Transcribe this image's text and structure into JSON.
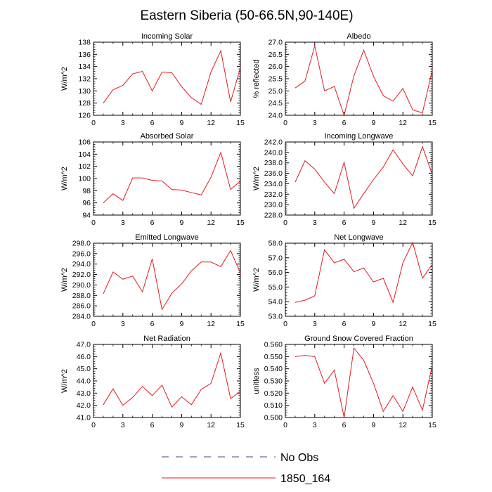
{
  "title": "Eastern Siberia (50-66.5N,90-140E)",
  "colors": {
    "series_line": "#e41a1c",
    "obs_line": "#444488",
    "axis": "#000000"
  },
  "legend": {
    "items": [
      {
        "label": "No Obs",
        "style": "dashed",
        "color": "#444488"
      },
      {
        "label": "1850_164",
        "style": "solid",
        "color": "#e41a1c"
      }
    ]
  },
  "chart_data": [
    {
      "type": "line",
      "title": "Incoming Solar",
      "ylabel": "W/m^2",
      "xlim": [
        0,
        15
      ],
      "ylim": [
        126,
        138
      ],
      "xticks": [
        0,
        3,
        6,
        9,
        12,
        15
      ],
      "yticks": [
        126,
        128,
        130,
        132,
        134,
        136,
        138
      ],
      "ytick_labels": [
        "126",
        "128",
        "130",
        "132",
        "134",
        "136",
        "138"
      ],
      "x": [
        1,
        2,
        3,
        4,
        5,
        6,
        7,
        8,
        9,
        10,
        11,
        12,
        13,
        14,
        15
      ],
      "series": [
        {
          "name": "1850_164",
          "values": [
            128.0,
            130.2,
            130.9,
            132.8,
            133.2,
            130.0,
            133.1,
            133.0,
            130.7,
            128.9,
            127.8,
            133.1,
            136.6,
            128.2,
            133.8
          ]
        }
      ]
    },
    {
      "type": "line",
      "title": "Albedo",
      "ylabel": "% reflected",
      "xlim": [
        0,
        15
      ],
      "ylim": [
        24.0,
        27.0
      ],
      "xticks": [
        0,
        3,
        6,
        9,
        12,
        15
      ],
      "yticks": [
        24.0,
        24.5,
        25.0,
        25.5,
        26.0,
        26.5,
        27.0
      ],
      "ytick_labels": [
        "24.0",
        "24.5",
        "25.0",
        "25.5",
        "26.0",
        "26.5",
        "27.0"
      ],
      "x": [
        1,
        2,
        3,
        4,
        5,
        6,
        7,
        8,
        9,
        10,
        11,
        12,
        13,
        14,
        15
      ],
      "series": [
        {
          "name": "1850_164",
          "values": [
            25.12,
            25.4,
            26.85,
            25.0,
            25.18,
            24.0,
            25.62,
            26.67,
            25.6,
            24.8,
            24.58,
            25.1,
            24.22,
            24.1,
            25.85
          ]
        }
      ]
    },
    {
      "type": "line",
      "title": "Absorbed Solar",
      "ylabel": "W/m^2",
      "xlim": [
        0,
        15
      ],
      "ylim": [
        94,
        106
      ],
      "xticks": [
        0,
        3,
        6,
        9,
        12,
        15
      ],
      "yticks": [
        94,
        96,
        98,
        100,
        102,
        104,
        106
      ],
      "ytick_labels": [
        "94",
        "96",
        "98",
        "100",
        "102",
        "104",
        "106"
      ],
      "x": [
        1,
        2,
        3,
        4,
        5,
        6,
        7,
        8,
        9,
        10,
        11,
        12,
        13,
        14,
        15
      ],
      "series": [
        {
          "name": "1850_164",
          "values": [
            96.0,
            97.5,
            96.4,
            100.1,
            100.1,
            99.7,
            99.6,
            98.2,
            98.1,
            97.7,
            97.3,
            100.2,
            104.3,
            98.2,
            99.6
          ]
        }
      ]
    },
    {
      "type": "line",
      "title": "Incoming Longwave",
      "ylabel": "W/m^2",
      "xlim": [
        0,
        15
      ],
      "ylim": [
        228.0,
        242.0
      ],
      "xticks": [
        0,
        3,
        6,
        9,
        12,
        15
      ],
      "yticks": [
        228.0,
        230.0,
        232.0,
        234.0,
        236.0,
        238.0,
        240.0,
        242.0
      ],
      "ytick_labels": [
        "228.0",
        "230.0",
        "232.0",
        "234.0",
        "236.0",
        "238.0",
        "240.0",
        "242.0"
      ],
      "x": [
        1,
        2,
        3,
        4,
        5,
        6,
        7,
        8,
        9,
        10,
        11,
        12,
        13,
        14,
        15
      ],
      "series": [
        {
          "name": "1850_164",
          "values": [
            234.3,
            238.4,
            236.8,
            234.3,
            232.1,
            238.1,
            229.3,
            232.1,
            234.8,
            237.2,
            240.5,
            237.8,
            235.5,
            241.1,
            235.8
          ]
        }
      ]
    },
    {
      "type": "line",
      "title": "Emitted Longwave",
      "ylabel": "W/m^2",
      "xlim": [
        0,
        15
      ],
      "ylim": [
        284.0,
        298.0
      ],
      "xticks": [
        0,
        3,
        6,
        9,
        12,
        15
      ],
      "yticks": [
        284.0,
        286.0,
        288.0,
        290.0,
        292.0,
        294.0,
        296.0,
        298.0
      ],
      "ytick_labels": [
        "284.0",
        "286.0",
        "288.0",
        "290.0",
        "292.0",
        "294.0",
        "296.0",
        "298.0"
      ],
      "x": [
        1,
        2,
        3,
        4,
        5,
        6,
        7,
        8,
        9,
        10,
        11,
        12,
        13,
        14,
        15
      ],
      "series": [
        {
          "name": "1850_164",
          "values": [
            288.3,
            292.5,
            291.1,
            291.7,
            288.7,
            295.0,
            285.3,
            288.4,
            290.2,
            292.7,
            294.4,
            294.4,
            293.5,
            296.6,
            292.3
          ]
        }
      ]
    },
    {
      "type": "line",
      "title": "Net Longwave",
      "ylabel": "W/m^2",
      "xlim": [
        0,
        15
      ],
      "ylim": [
        53.0,
        58.0
      ],
      "xticks": [
        0,
        3,
        6,
        9,
        12,
        15
      ],
      "yticks": [
        53.0,
        54.0,
        55.0,
        56.0,
        57.0,
        58.0
      ],
      "ytick_labels": [
        "53.0",
        "54.0",
        "55.0",
        "56.0",
        "57.0",
        "58.0"
      ],
      "x": [
        1,
        2,
        3,
        4,
        5,
        6,
        7,
        8,
        9,
        10,
        11,
        12,
        13,
        14,
        15
      ],
      "series": [
        {
          "name": "1850_164",
          "values": [
            53.95,
            54.1,
            54.4,
            57.55,
            56.65,
            56.9,
            56.05,
            56.3,
            55.35,
            55.6,
            53.95,
            56.65,
            58.05,
            55.6,
            56.55
          ]
        }
      ]
    },
    {
      "type": "line",
      "title": "Net Radiation",
      "ylabel": "W/m^2",
      "xlim": [
        0,
        15
      ],
      "ylim": [
        41.0,
        47.0
      ],
      "xticks": [
        0,
        3,
        6,
        9,
        12,
        15
      ],
      "yticks": [
        41.0,
        42.0,
        43.0,
        44.0,
        45.0,
        46.0,
        47.0
      ],
      "ytick_labels": [
        "41.0",
        "42.0",
        "43.0",
        "44.0",
        "45.0",
        "46.0",
        "47.0"
      ],
      "x": [
        1,
        2,
        3,
        4,
        5,
        6,
        7,
        8,
        9,
        10,
        11,
        12,
        13,
        14,
        15
      ],
      "series": [
        {
          "name": "1850_164",
          "values": [
            42.05,
            43.35,
            42.0,
            42.65,
            43.55,
            42.8,
            43.65,
            41.85,
            42.7,
            42.05,
            43.3,
            43.8,
            46.3,
            42.55,
            43.15
          ]
        }
      ]
    },
    {
      "type": "line",
      "title": "Ground Snow Covered Fraction",
      "ylabel": "unitless",
      "xlim": [
        0,
        15
      ],
      "ylim": [
        0.5,
        0.56
      ],
      "xticks": [
        0,
        3,
        6,
        9,
        12,
        15
      ],
      "yticks": [
        0.5,
        0.51,
        0.52,
        0.53,
        0.54,
        0.55,
        0.56
      ],
      "ytick_labels": [
        "0.500",
        "0.510",
        "0.520",
        "0.530",
        "0.540",
        "0.550",
        "0.560"
      ],
      "x": [
        1,
        2,
        3,
        4,
        5,
        6,
        7,
        8,
        9,
        10,
        11,
        12,
        13,
        14,
        15
      ],
      "series": [
        {
          "name": "1850_164",
          "values": [
            0.55,
            0.551,
            0.55,
            0.528,
            0.539,
            0.5,
            0.557,
            0.547,
            0.528,
            0.505,
            0.518,
            0.505,
            0.525,
            0.506,
            0.543
          ]
        }
      ]
    }
  ]
}
